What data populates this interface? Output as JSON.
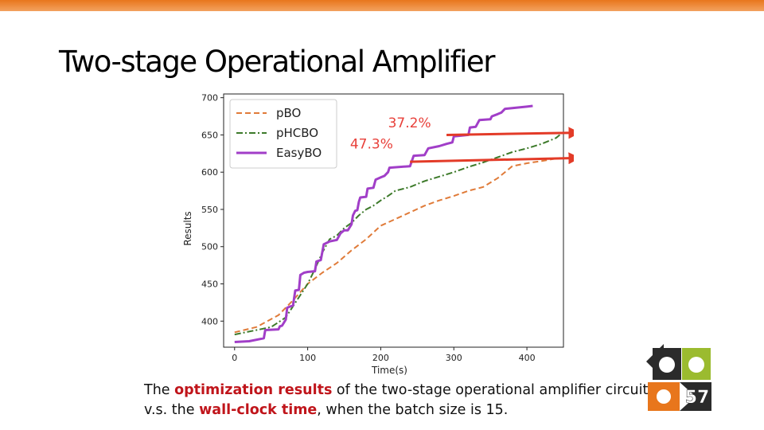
{
  "slide": {
    "title": "Two-stage Operational Amplifier",
    "page_number": "57"
  },
  "caption": {
    "part1": "The ",
    "hl1": "optimization results",
    "part2": " of the two-stage operational amplifier circuit v.s. the ",
    "hl2": "wall-clock time",
    "part3": ", when the batch size is 15."
  },
  "colors": {
    "accent_orange": "#e8761c",
    "highlight_red": "#c0151b",
    "logo_green": "#9bbb2f",
    "logo_dark": "#2b2b2b"
  },
  "chart_data": {
    "type": "line",
    "xlabel": "Time(s)",
    "ylabel": "Results",
    "xlim": [
      -15,
      450
    ],
    "ylim": [
      365,
      705
    ],
    "x_ticks": [
      0,
      100,
      200,
      300,
      400
    ],
    "y_ticks": [
      400,
      450,
      500,
      550,
      600,
      650,
      700
    ],
    "legend_position": "top-left",
    "grid": false,
    "series": [
      {
        "name": "pBO",
        "color": "#e07b39",
        "style": "dashed",
        "points": [
          [
            0,
            385
          ],
          [
            30,
            392
          ],
          [
            60,
            408
          ],
          [
            80,
            428
          ],
          [
            100,
            450
          ],
          [
            120,
            465
          ],
          [
            140,
            478
          ],
          [
            160,
            495
          ],
          [
            180,
            510
          ],
          [
            200,
            528
          ],
          [
            220,
            537
          ],
          [
            240,
            546
          ],
          [
            260,
            555
          ],
          [
            280,
            562
          ],
          [
            300,
            568
          ],
          [
            320,
            575
          ],
          [
            340,
            580
          ],
          [
            360,
            592
          ],
          [
            380,
            608
          ],
          [
            400,
            612
          ],
          [
            420,
            615
          ],
          [
            445,
            619
          ]
        ]
      },
      {
        "name": "pHCBO",
        "color": "#3d7a2a",
        "style": "dashdot",
        "points": [
          [
            0,
            382
          ],
          [
            30,
            388
          ],
          [
            50,
            392
          ],
          [
            70,
            405
          ],
          [
            80,
            420
          ],
          [
            100,
            450
          ],
          [
            110,
            470
          ],
          [
            120,
            492
          ],
          [
            130,
            510
          ],
          [
            140,
            515
          ],
          [
            150,
            525
          ],
          [
            160,
            532
          ],
          [
            170,
            542
          ],
          [
            180,
            550
          ],
          [
            190,
            555
          ],
          [
            200,
            562
          ],
          [
            210,
            568
          ],
          [
            220,
            575
          ],
          [
            240,
            580
          ],
          [
            260,
            588
          ],
          [
            280,
            594
          ],
          [
            300,
            600
          ],
          [
            320,
            607
          ],
          [
            340,
            613
          ],
          [
            360,
            620
          ],
          [
            380,
            627
          ],
          [
            400,
            632
          ],
          [
            420,
            638
          ],
          [
            440,
            646
          ],
          [
            445,
            650
          ]
        ]
      },
      {
        "name": "EasyBO",
        "color": "#a13ec8",
        "style": "solid",
        "points": [
          [
            0,
            372
          ],
          [
            20,
            373
          ],
          [
            40,
            377
          ],
          [
            42,
            388
          ],
          [
            60,
            389
          ],
          [
            62,
            393
          ],
          [
            65,
            394
          ],
          [
            70,
            402
          ],
          [
            72,
            418
          ],
          [
            80,
            421
          ],
          [
            83,
            441
          ],
          [
            88,
            442
          ],
          [
            90,
            462
          ],
          [
            95,
            465
          ],
          [
            100,
            466
          ],
          [
            110,
            467
          ],
          [
            112,
            480
          ],
          [
            118,
            482
          ],
          [
            122,
            503
          ],
          [
            130,
            507
          ],
          [
            140,
            509
          ],
          [
            145,
            518
          ],
          [
            150,
            522
          ],
          [
            155,
            522
          ],
          [
            160,
            530
          ],
          [
            162,
            542
          ],
          [
            165,
            548
          ],
          [
            168,
            549
          ],
          [
            170,
            560
          ],
          [
            172,
            566
          ],
          [
            180,
            567
          ],
          [
            182,
            578
          ],
          [
            190,
            579
          ],
          [
            193,
            590
          ],
          [
            200,
            593
          ],
          [
            205,
            595
          ],
          [
            210,
            600
          ],
          [
            212,
            606
          ],
          [
            240,
            608
          ],
          [
            245,
            622
          ],
          [
            260,
            623
          ],
          [
            265,
            632
          ],
          [
            280,
            635
          ],
          [
            290,
            638
          ],
          [
            298,
            640
          ],
          [
            300,
            648
          ],
          [
            320,
            650
          ],
          [
            322,
            660
          ],
          [
            330,
            661
          ],
          [
            335,
            670
          ],
          [
            350,
            671
          ],
          [
            352,
            675
          ],
          [
            360,
            678
          ],
          [
            365,
            680
          ],
          [
            370,
            685
          ],
          [
            380,
            686
          ],
          [
            400,
            688
          ],
          [
            408,
            689
          ]
        ]
      }
    ],
    "annotations": [
      {
        "text": "37.2%",
        "color": "#e8403a",
        "x": 210,
        "y": 660
      },
      {
        "text": "47.3%",
        "color": "#e8403a",
        "x": 158,
        "y": 632
      }
    ],
    "arrows": [
      {
        "color": "#e33b28",
        "from": [
          290,
          650
        ],
        "to": [
          470,
          653
        ]
      },
      {
        "color": "#e33b28",
        "from": [
          240,
          614
        ],
        "to": [
          470,
          619
        ]
      }
    ]
  }
}
